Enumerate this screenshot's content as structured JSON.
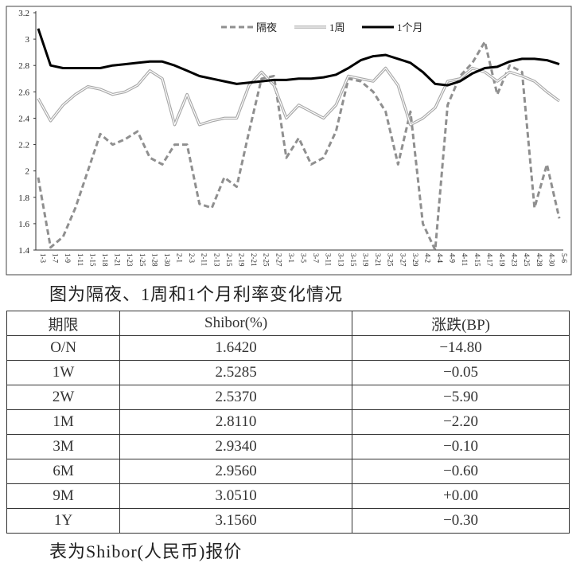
{
  "chart_data": {
    "type": "line",
    "categories": [
      "1-3",
      "1-7",
      "1-9",
      "1-11",
      "1-15",
      "1-18",
      "1-21",
      "1-23",
      "1-25",
      "1-28",
      "1-30",
      "2-1",
      "2-3",
      "2-11",
      "2-13",
      "2-15",
      "2-19",
      "2-21",
      "2-25",
      "2-27",
      "3-1",
      "3-5",
      "3-7",
      "3-11",
      "3-13",
      "3-15",
      "3-19",
      "3-21",
      "3-25",
      "3-27",
      "3-29",
      "4-2",
      "4-4",
      "4-9",
      "4-11",
      "4-15",
      "4-17",
      "4-19",
      "4-23",
      "4-25",
      "4-28",
      "4-30",
      "5-6"
    ],
    "series": [
      {
        "name": "隔夜",
        "color": "#8f8f8f",
        "style": "dashed",
        "values": [
          1.95,
          1.42,
          1.5,
          1.72,
          2.0,
          2.28,
          2.2,
          2.24,
          2.3,
          2.1,
          2.05,
          2.2,
          2.2,
          1.75,
          1.72,
          1.95,
          1.88,
          2.3,
          2.7,
          2.72,
          2.1,
          2.25,
          2.05,
          2.1,
          2.3,
          2.7,
          2.68,
          2.6,
          2.45,
          2.05,
          2.45,
          1.6,
          1.4,
          2.5,
          2.72,
          2.82,
          2.98,
          2.58,
          2.8,
          2.75,
          1.72,
          2.05,
          1.64
        ]
      },
      {
        "name": "1周",
        "color": "#a8a8a8",
        "style": "double",
        "values": [
          2.55,
          2.38,
          2.5,
          2.58,
          2.64,
          2.62,
          2.58,
          2.6,
          2.65,
          2.76,
          2.7,
          2.35,
          2.58,
          2.35,
          2.38,
          2.4,
          2.4,
          2.65,
          2.75,
          2.65,
          2.4,
          2.5,
          2.45,
          2.4,
          2.5,
          2.72,
          2.7,
          2.68,
          2.78,
          2.65,
          2.35,
          2.4,
          2.48,
          2.68,
          2.7,
          2.78,
          2.75,
          2.68,
          2.75,
          2.72,
          2.68,
          2.6,
          2.53
        ]
      },
      {
        "name": "1个月",
        "color": "#000000",
        "style": "solid",
        "values": [
          3.08,
          2.8,
          2.78,
          2.78,
          2.78,
          2.78,
          2.8,
          2.81,
          2.82,
          2.83,
          2.83,
          2.8,
          2.76,
          2.72,
          2.7,
          2.68,
          2.66,
          2.67,
          2.68,
          2.69,
          2.69,
          2.7,
          2.7,
          2.71,
          2.73,
          2.78,
          2.84,
          2.87,
          2.88,
          2.85,
          2.82,
          2.75,
          2.66,
          2.65,
          2.68,
          2.74,
          2.78,
          2.79,
          2.83,
          2.85,
          2.85,
          2.84,
          2.81
        ]
      }
    ],
    "ylim": [
      1.4,
      3.2
    ],
    "yticks": [
      1.4,
      1.6,
      1.8,
      2,
      2.2,
      2.4,
      2.6,
      2.8,
      3,
      3.2
    ],
    "grid": false,
    "legend": "top"
  },
  "chart_caption": "图为隔夜、1周和1个月利率变化情况",
  "table": {
    "header": [
      "期限",
      "Shibor(%)",
      "涨跌(BP)"
    ],
    "rows": [
      [
        "O/N",
        "1.6420",
        "−14.80"
      ],
      [
        "1W",
        "2.5285",
        "−0.05"
      ],
      [
        "2W",
        "2.5370",
        "−5.90"
      ],
      [
        "1M",
        "2.8110",
        "−2.20"
      ],
      [
        "3M",
        "2.9340",
        "−0.10"
      ],
      [
        "6M",
        "2.9560",
        "−0.60"
      ],
      [
        "9M",
        "3.0510",
        "+0.00"
      ],
      [
        "1Y",
        "3.1560",
        "−0.30"
      ]
    ]
  },
  "table_caption": "表为Shibor(人民币)报价"
}
